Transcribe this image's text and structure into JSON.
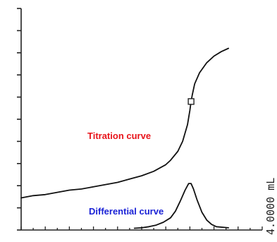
{
  "chart_data": {
    "type": "line",
    "title": "",
    "xlabel": "",
    "ylabel": "",
    "grid": false,
    "legend": "none",
    "annotations": [
      {
        "text": "Titration curve",
        "color": "#e8141b"
      },
      {
        "text": "Differential curve",
        "color": "#1a22d6"
      },
      {
        "text": "4.0000 mL",
        "color": "#222222",
        "orientation": "vertical"
      }
    ],
    "xlim": [
      0,
      10
    ],
    "ylim": [
      0,
      10
    ],
    "x_ticks": [
      0,
      0.5,
      1,
      1.5,
      2,
      2.5,
      3,
      3.5,
      4,
      4.5,
      5,
      5.5,
      6,
      6.5,
      7,
      7.5,
      8,
      8.5,
      9,
      9.5,
      10
    ],
    "y_ticks": [
      0,
      1,
      2,
      3,
      4,
      5,
      6,
      7,
      8,
      9,
      10
    ],
    "series": [
      {
        "color": "#111111",
        "x": [
          0,
          0.5,
          1,
          1.5,
          2,
          2.5,
          3,
          3.5,
          4,
          4.5,
          5,
          5.5,
          6,
          6.2,
          6.5,
          6.7,
          6.9,
          7.0,
          7.05,
          7.1,
          7.2,
          7.4,
          7.7,
          8.0,
          8.3,
          8.6
        ],
        "y": [
          1.45,
          1.55,
          1.6,
          1.7,
          1.8,
          1.85,
          1.95,
          2.05,
          2.15,
          2.3,
          2.45,
          2.65,
          2.95,
          3.15,
          3.55,
          4.0,
          4.75,
          5.4,
          5.8,
          6.1,
          6.6,
          7.1,
          7.55,
          7.85,
          8.05,
          8.2
        ]
      },
      {
        "color": "#111111",
        "x": [
          4.7,
          5.0,
          5.3,
          5.6,
          5.9,
          6.2,
          6.4,
          6.6,
          6.8,
          6.95,
          7.05,
          7.15,
          7.3,
          7.5,
          7.7,
          7.9,
          8.1,
          8.6
        ],
        "y": [
          0.08,
          0.1,
          0.15,
          0.22,
          0.35,
          0.55,
          0.85,
          1.3,
          1.8,
          2.1,
          2.1,
          1.85,
          1.35,
          0.8,
          0.45,
          0.25,
          0.15,
          0.1
        ]
      }
    ],
    "marker": {
      "x": 7.05,
      "y": 5.8,
      "shape": "square"
    }
  }
}
